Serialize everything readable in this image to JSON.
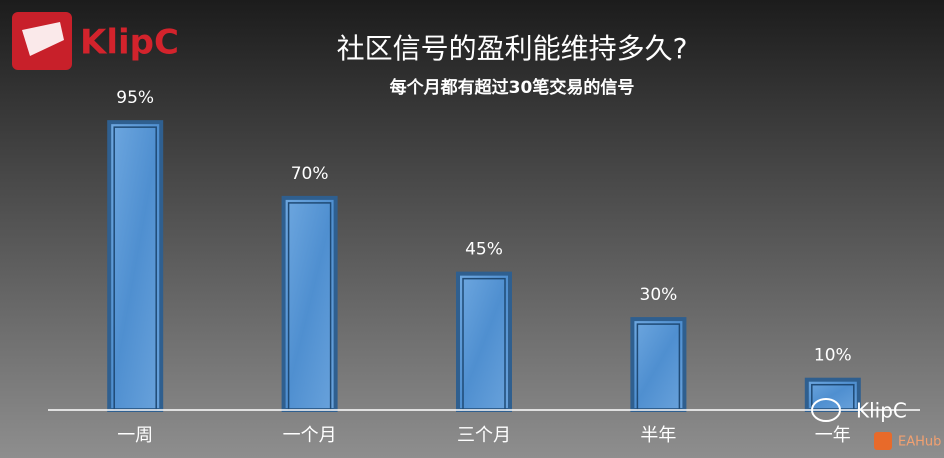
{
  "logo": "KlipC",
  "watermark": {
    "text": "KlipC",
    "source": "EAHub"
  },
  "chart_data": {
    "type": "bar",
    "title": "社区信号的盈利能维持多久?",
    "subtitle": "每个月都有超过30笔交易的信号",
    "categories": [
      "一周",
      "一个月",
      "三个月",
      "半年",
      "一年"
    ],
    "values": [
      95,
      70,
      45,
      30,
      10
    ],
    "value_labels": [
      "95%",
      "70%",
      "45%",
      "30%",
      "10%"
    ],
    "color": "#5b9bd5",
    "ylim": [
      0,
      100
    ]
  }
}
